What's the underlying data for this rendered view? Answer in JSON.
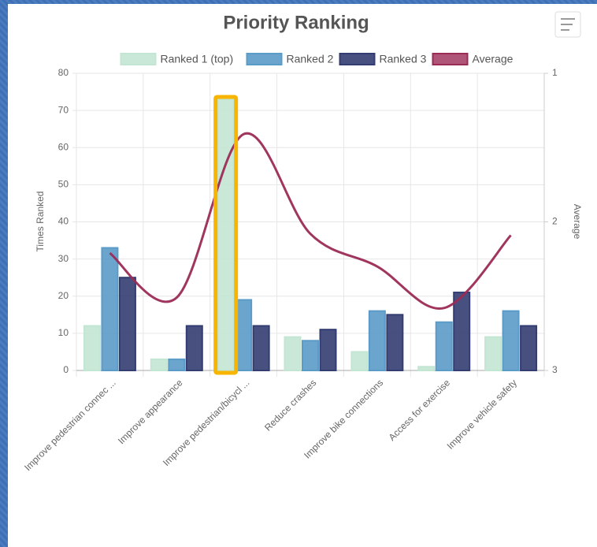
{
  "chart_data": {
    "type": "bar",
    "title": "Priority Ranking",
    "categories": [
      "Improve pedestrian connec ...",
      "Improve appearance",
      "Improve pedestrian/bicycl ...",
      "Reduce crashes",
      "Improve bike connections",
      "Access for exercise",
      "Improve vehicle safety"
    ],
    "series": [
      {
        "name": "Ranked 1 (top)",
        "color": "#c3e6d3",
        "values": [
          12,
          3,
          73,
          9,
          5,
          1,
          9
        ]
      },
      {
        "name": "Ranked 2",
        "color": "#5b9bc8",
        "values": [
          33,
          3,
          19,
          8,
          16,
          13,
          16
        ]
      },
      {
        "name": "Ranked 3",
        "color": "#343d72",
        "values": [
          25,
          12,
          12,
          11,
          15,
          21,
          12
        ]
      },
      {
        "name": "Average",
        "color": "#9b2b55",
        "type": "line",
        "axis": "y2",
        "values": [
          2.21,
          2.51,
          1.41,
          2.08,
          2.3,
          2.58,
          2.09
        ]
      }
    ],
    "y_label": "Times Ranked",
    "y2_label": "Average",
    "ylim": [
      0,
      80
    ],
    "yticks": [
      0,
      10,
      20,
      30,
      40,
      50,
      60,
      70,
      80
    ],
    "y2lim": [
      3,
      1
    ],
    "y2ticks": [
      1,
      2,
      3
    ],
    "grid": true,
    "legend": "top"
  }
}
